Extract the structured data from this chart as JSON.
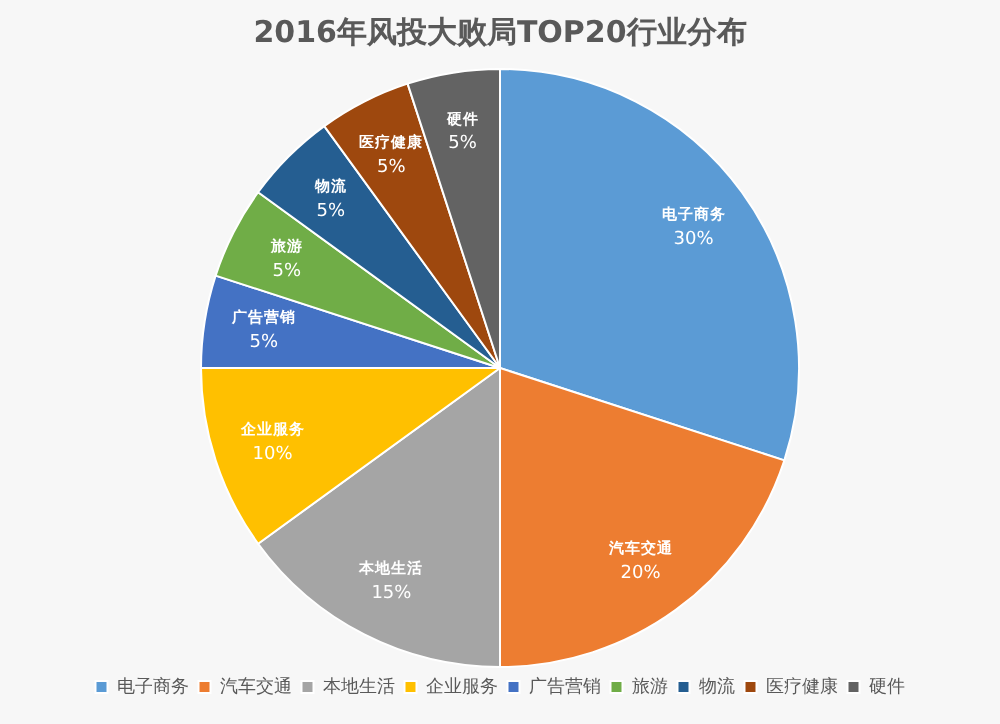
{
  "chart_data": {
    "type": "pie",
    "title": "2016年风投大败局TOP20行业分布",
    "categories": [
      "电子商务",
      "汽车交通",
      "本地生活",
      "企业服务",
      "广告营销",
      "旅游",
      "物流",
      "医疗健康",
      "硬件"
    ],
    "values": [
      30,
      20,
      15,
      10,
      5,
      5,
      5,
      5,
      5
    ],
    "value_labels": [
      "30%",
      "20%",
      "15%",
      "10%",
      "5%",
      "5%",
      "5%",
      "5%",
      "5%"
    ],
    "colors": [
      "#5b9bd5",
      "#ed7d31",
      "#a5a5a5",
      "#ffc000",
      "#4472c4",
      "#70ad47",
      "#255e91",
      "#9e480e",
      "#636363"
    ],
    "legend": "bottom"
  }
}
